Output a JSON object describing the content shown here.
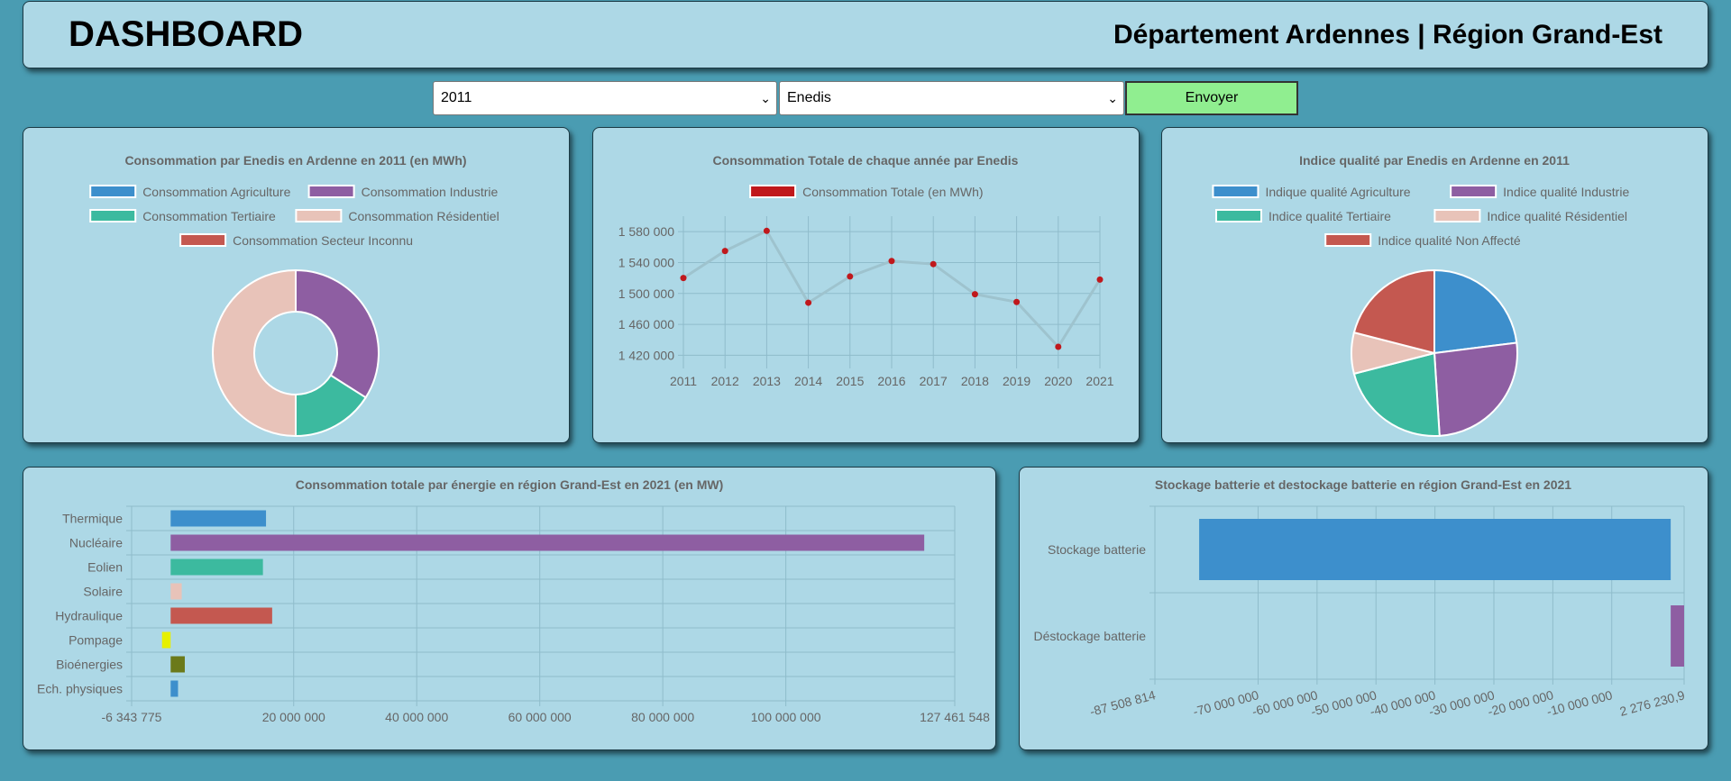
{
  "header": {
    "title": "DASHBOARD",
    "region": "Département Ardennes | Région Grand-Est"
  },
  "controls": {
    "year": "2011",
    "provider": "Enedis",
    "submit_label": "Envoyer"
  },
  "chart_data": [
    {
      "type": "doughnut",
      "title": "Consommation par Enedis en Ardenne en 2011 (en MWh)",
      "labels": [
        "Consommation Agriculture",
        "Consommation Industrie",
        "Consommation Tertiaire",
        "Consommation Résidentiel",
        "Consommation Secteur Inconnu"
      ],
      "values": [
        0,
        34,
        16,
        50,
        0
      ],
      "colors": [
        "#3d8fcc",
        "#8e5ea2",
        "#3cba9f",
        "#e8c3b9",
        "#c45850"
      ],
      "legend": "top"
    },
    {
      "type": "line",
      "title": "Consommation Totale de chaque année par Enedis",
      "legend": "top",
      "x": [
        "2011",
        "2012",
        "2013",
        "2014",
        "2015",
        "2016",
        "2017",
        "2018",
        "2019",
        "2020",
        "2021"
      ],
      "series": [
        {
          "name": "Consommation Totale (en MWh)",
          "values": [
            1520000,
            1555000,
            1581000,
            1488000,
            1522000,
            1542000,
            1538000,
            1499000,
            1489000,
            1431000,
            1518000
          ],
          "color": "#c0181c"
        }
      ],
      "ylim": [
        1410000,
        1600000
      ],
      "yticks": [
        "1 420 000",
        "1 460 000",
        "1 500 000",
        "1 540 000",
        "1 580 000"
      ],
      "ytick_values": [
        1420000,
        1460000,
        1500000,
        1540000,
        1580000
      ],
      "grid": true
    },
    {
      "type": "pie",
      "title": "Indice qualité par Enedis en Ardenne en 2011",
      "labels": [
        "Indique qualité Agriculture",
        "Indice qualité Industrie",
        "Indice qualité Tertiaire",
        "Indice qualité Résidentiel",
        "Indice qualité Non Affecté"
      ],
      "values": [
        23,
        26,
        22,
        8,
        21
      ],
      "colors": [
        "#3d8fcc",
        "#8e5ea2",
        "#3cba9f",
        "#e8c3b9",
        "#c45850"
      ],
      "legend": "top"
    },
    {
      "type": "bar",
      "orientation": "horizontal",
      "title": "Consommation totale par énergie en région Grand-Est en 2021 (en MW)",
      "categories": [
        "Thermique",
        "Nucléaire",
        "Eolien",
        "Solaire",
        "Hydraulique",
        "Pompage",
        "Bioénergies",
        "Ech. physiques"
      ],
      "values": [
        15500000,
        122500000,
        15000000,
        1800000,
        16500000,
        -1400000,
        2300000,
        1200000
      ],
      "colors": [
        "#3d8fcc",
        "#8e5ea2",
        "#3cba9f",
        "#e8c3b9",
        "#c45850",
        "#e6f000",
        "#6b7a1a",
        "#3d8fcc"
      ],
      "xlim": [
        -6343775,
        127461548
      ],
      "xticks": [
        "-6 343 775",
        "20 000 000",
        "40 000 000",
        "60 000 000",
        "80 000 000",
        "100 000 000",
        "127 461 548"
      ],
      "xtick_values": [
        -6343775,
        20000000,
        40000000,
        60000000,
        80000000,
        100000000,
        127461548
      ],
      "grid": true
    },
    {
      "type": "bar",
      "orientation": "horizontal",
      "title": "Stockage batterie et destockage batterie en région Grand-Est en 2021",
      "categories": [
        "Stockage batterie",
        "Déstockage batterie"
      ],
      "values": [
        -80000000,
        2276230.9
      ],
      "colors": [
        "#3d8fcc",
        "#8e5ea2"
      ],
      "xlim": [
        -87508814,
        2276230.9
      ],
      "xticks": [
        "-87 508 814",
        "-70 000 000",
        "-60 000 000",
        "-50 000 000",
        "-40 000 000",
        "-30 000 000",
        "-20 000 000",
        "-10 000 000",
        "2 276 230,9"
      ],
      "xtick_values": [
        -87508814,
        -70000000,
        -60000000,
        -50000000,
        -40000000,
        -30000000,
        -20000000,
        -10000000,
        2276230.9
      ],
      "grid": true
    }
  ]
}
